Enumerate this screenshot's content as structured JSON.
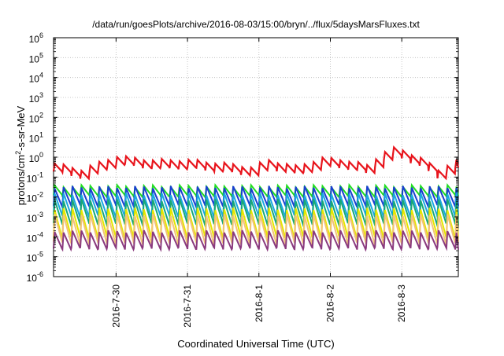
{
  "chart_data": {
    "type": "line",
    "title": "/data/run/goesPlots/archive/2016-08-03/15:00/bryn/../flux/5daysMarsFluxes.txt",
    "xlabel": "Coordinated Universal Time (UTC)",
    "ylabel_main": "protons/cm",
    "ylabel_sup": "2",
    "ylabel_rest": "-s-sr-MeV",
    "yscale": "log",
    "ylim": [
      1e-06,
      1000000.0
    ],
    "xlim": [
      "2016-07-29T03:00",
      "2016-08-03T19:00"
    ],
    "grid": true,
    "legend": "none",
    "y_ticks": [
      {
        "value": 1000000.0,
        "base": "10",
        "exp": "6"
      },
      {
        "value": 100000.0,
        "base": "10",
        "exp": "5"
      },
      {
        "value": 10000.0,
        "base": "10",
        "exp": "4"
      },
      {
        "value": 1000.0,
        "base": "10",
        "exp": "3"
      },
      {
        "value": 100.0,
        "base": "10",
        "exp": "2"
      },
      {
        "value": 10.0,
        "base": "10",
        "exp": "1"
      },
      {
        "value": 1.0,
        "base": "10",
        "exp": "0"
      },
      {
        "value": 0.1,
        "base": "10",
        "exp": "-1"
      },
      {
        "value": 0.01,
        "base": "10",
        "exp": "-2"
      },
      {
        "value": 0.001,
        "base": "10",
        "exp": "-3"
      },
      {
        "value": 0.0001,
        "base": "10",
        "exp": "-4"
      },
      {
        "value": 1e-05,
        "base": "10",
        "exp": "-5"
      },
      {
        "value": 1e-06,
        "base": "10",
        "exp": "-6"
      }
    ],
    "x_ticks": [
      {
        "value": "2016-07-30T00:00",
        "label": "2016-7-30"
      },
      {
        "value": "2016-07-31T00:00",
        "label": "2016-7-31"
      },
      {
        "value": "2016-08-01T00:00",
        "label": "2016-8-1"
      },
      {
        "value": "2016-08-02T00:00",
        "label": "2016-8-2"
      },
      {
        "value": "2016-08-03T00:00",
        "label": "2016-8-3"
      }
    ],
    "sawtooth": {
      "period_hours": 3,
      "start": "2016-07-29T03:00",
      "end": "2016-08-03T19:00"
    },
    "series": [
      {
        "color": "#e8141c",
        "width": 2.2,
        "style": "main",
        "envelope": [
          [
            "2016-07-29T03:00",
            0.3
          ],
          [
            "2016-07-29T12:00",
            0.15
          ],
          [
            "2016-07-29T21:00",
            0.5
          ],
          [
            "2016-07-30T00:00",
            0.7
          ],
          [
            "2016-07-30T12:00",
            0.45
          ],
          [
            "2016-07-31T00:00",
            0.45
          ],
          [
            "2016-07-31T12:00",
            0.3
          ],
          [
            "2016-07-31T21:00",
            0.2
          ],
          [
            "2016-08-01T03:00",
            0.45
          ],
          [
            "2016-08-01T12:00",
            0.22
          ],
          [
            "2016-08-01T21:00",
            0.55
          ],
          [
            "2016-08-02T03:00",
            0.5
          ],
          [
            "2016-08-02T12:00",
            0.25
          ],
          [
            "2016-08-02T17:00",
            1.0
          ],
          [
            "2016-08-02T22:00",
            2.0
          ],
          [
            "2016-08-03T06:00",
            0.55
          ],
          [
            "2016-08-03T12:00",
            0.15
          ],
          [
            "2016-08-03T19:00",
            0.5
          ]
        ],
        "amp": 2.5
      },
      {
        "color": "#22dd22",
        "width": 2,
        "style": "saw",
        "envelope": [
          [
            "2016-07-29T03:00",
            0.02
          ],
          [
            "2016-08-03T19:00",
            0.02
          ]
        ],
        "amp": 3
      },
      {
        "color": "#1a3fd0",
        "width": 2,
        "style": "saw",
        "envelope": [
          [
            "2016-07-29T03:00",
            0.011
          ],
          [
            "2016-08-03T19:00",
            0.011
          ]
        ],
        "amp": 8
      },
      {
        "color": "#1aa8e0",
        "width": 2,
        "style": "saw",
        "envelope": [
          [
            "2016-07-29T03:00",
            0.004
          ],
          [
            "2016-08-03T19:00",
            0.004
          ]
        ],
        "amp": 12
      },
      {
        "color": "#18a878",
        "width": 2,
        "style": "saw",
        "envelope": [
          [
            "2016-07-29T03:00",
            0.0018
          ],
          [
            "2016-08-03T19:00",
            0.0018
          ]
        ],
        "amp": 15
      },
      {
        "color": "#e6e600",
        "width": 2,
        "style": "saw",
        "envelope": [
          [
            "2016-07-29T03:00",
            0.0005
          ],
          [
            "2016-08-03T19:00",
            0.0005
          ]
        ],
        "amp": 25
      },
      {
        "color": "#f2c27a",
        "width": 2,
        "style": "saw",
        "envelope": [
          [
            "2016-07-29T03:00",
            0.00025
          ],
          [
            "2016-08-03T19:00",
            0.00025
          ]
        ],
        "amp": 25
      },
      {
        "color": "#8a3a7e",
        "width": 2,
        "style": "saw",
        "envelope": [
          [
            "2016-07-29T03:00",
            7e-05
          ],
          [
            "2016-08-03T19:00",
            7e-05
          ]
        ],
        "amp": 7
      }
    ]
  }
}
